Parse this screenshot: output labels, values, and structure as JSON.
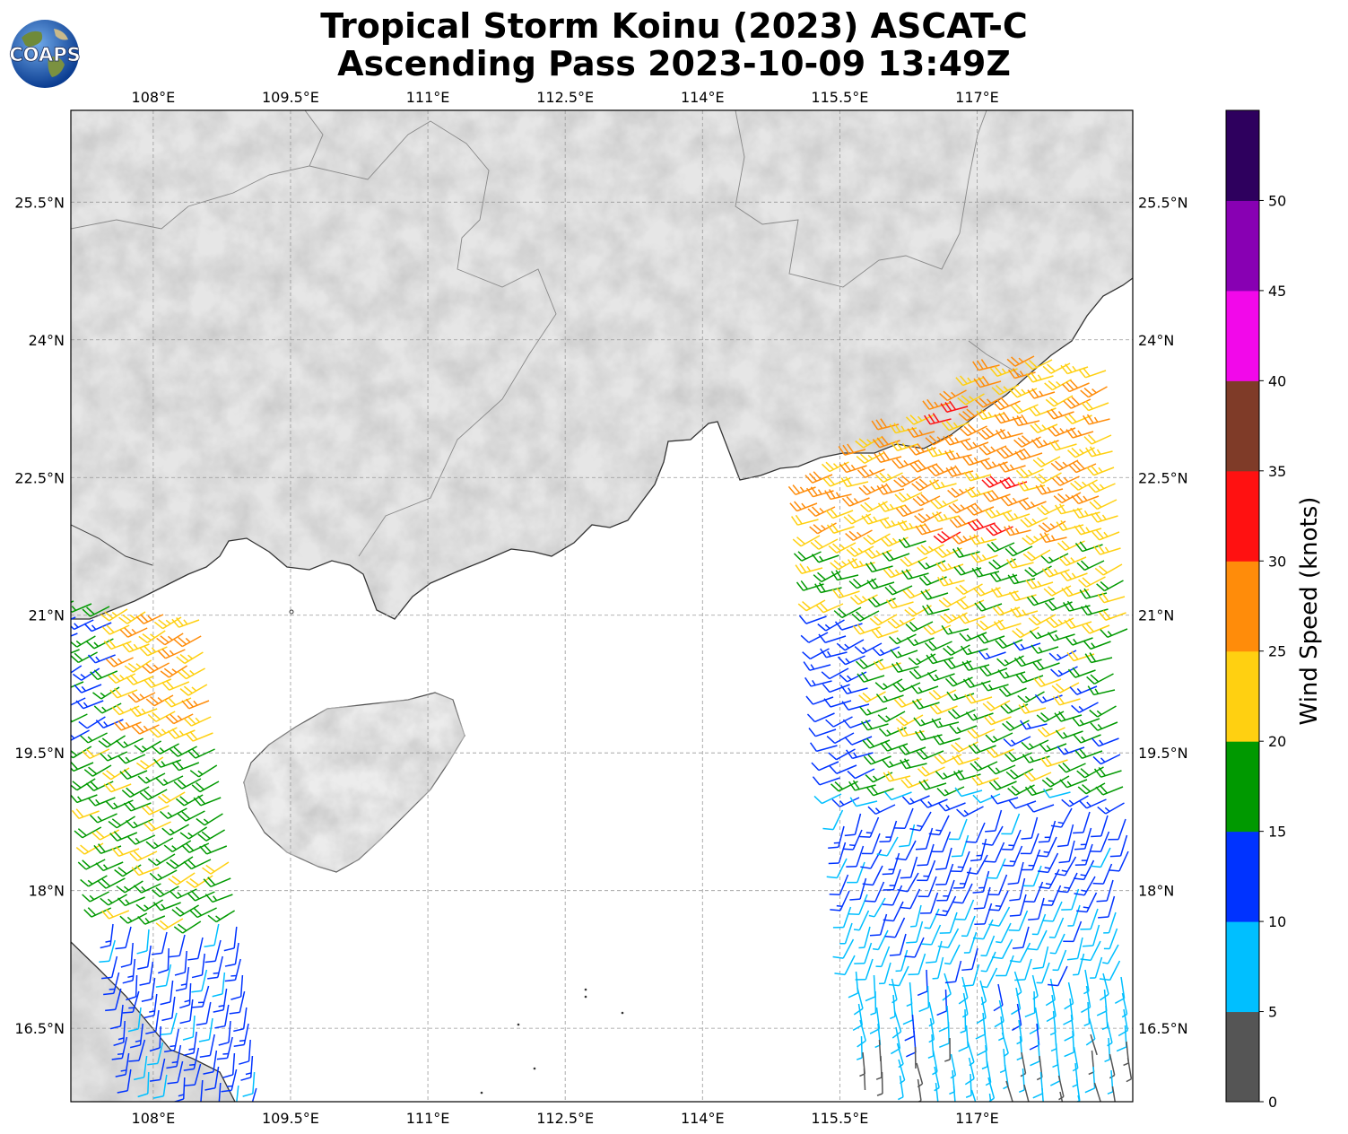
{
  "title": {
    "line1": "Tropical Storm Koinu (2023) ASCAT-C",
    "line2": "Ascending Pass 2023-10-09 13:49Z"
  },
  "logo": {
    "text": "COAPS",
    "icon": "coaps-globe-logo-icon"
  },
  "map": {
    "lon_range": [
      107.1,
      118.7
    ],
    "lat_range": [
      15.7,
      26.5
    ],
    "lon_ticks": [
      {
        "v": 108.0,
        "label": "108°E"
      },
      {
        "v": 109.5,
        "label": "109.5°E"
      },
      {
        "v": 111.0,
        "label": "111°E"
      },
      {
        "v": 112.5,
        "label": "112.5°E"
      },
      {
        "v": 114.0,
        "label": "114°E"
      },
      {
        "v": 115.5,
        "label": "115.5°E"
      },
      {
        "v": 117.0,
        "label": "117°E"
      }
    ],
    "lat_ticks": [
      {
        "v": 25.5,
        "label": "25.5°N"
      },
      {
        "v": 24.0,
        "label": "24°N"
      },
      {
        "v": 22.5,
        "label": "22.5°N"
      },
      {
        "v": 21.0,
        "label": "21°N"
      },
      {
        "v": 19.5,
        "label": "19.5°N"
      },
      {
        "v": 18.0,
        "label": "18°N"
      },
      {
        "v": 16.5,
        "label": "16.5°N"
      }
    ],
    "gridlines": true,
    "background": "land grayscale topography, white ocean"
  },
  "colorbar": {
    "label": "Wind Speed (knots)",
    "ticks": [
      "0",
      "5",
      "10",
      "15",
      "20",
      "25",
      "30",
      "35",
      "40",
      "45",
      "50"
    ],
    "bins": [
      {
        "from": 0,
        "to": 5,
        "color": "#555555"
      },
      {
        "from": 5,
        "to": 10,
        "color": "#00bfff"
      },
      {
        "from": 10,
        "to": 15,
        "color": "#0033ff"
      },
      {
        "from": 15,
        "to": 20,
        "color": "#009900"
      },
      {
        "from": 20,
        "to": 25,
        "color": "#ffd011"
      },
      {
        "from": 25,
        "to": 30,
        "color": "#ff8c0a"
      },
      {
        "from": 30,
        "to": 35,
        "color": "#ff1111"
      },
      {
        "from": 35,
        "to": 40,
        "color": "#7f3b28"
      },
      {
        "from": 40,
        "to": 45,
        "color": "#f208ea"
      },
      {
        "from": 45,
        "to": 50,
        "color": "#8800b3"
      },
      {
        "from": 50,
        "to": 55,
        "color": "#2e005e"
      }
    ]
  }
}
